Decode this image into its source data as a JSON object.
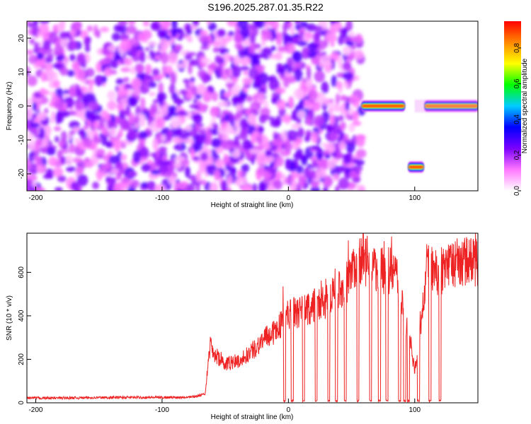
{
  "figure_title": "S196.2025.287.01.35.R22",
  "colors": {
    "line": "#ee2222",
    "colormap": [
      "#ffffff",
      "#ff77ff",
      "#7b00ff",
      "#0000ff",
      "#00ccff",
      "#00ff00",
      "#ffff00",
      "#ff8800",
      "#ff0000"
    ]
  },
  "chart_data": [
    {
      "type": "heatmap",
      "title": "",
      "xlabel": "Height of straight line (km)",
      "ylabel": "Frequency (Hz)",
      "xlim": [
        -207,
        150
      ],
      "ylim": [
        -25,
        25
      ],
      "xticks": [
        -200,
        -100,
        0,
        100
      ],
      "yticks": [
        20,
        10,
        0,
        -10,
        -20
      ],
      "colorbar": {
        "label": "Normalized spectral amplitude",
        "range": [
          0,
          0.95
        ],
        "ticks": [
          0.0,
          0.2,
          0.4,
          0.6,
          0.8
        ],
        "scheme": "rainbow"
      },
      "regions": [
        {
          "name": "noise",
          "x": [
            -207,
            58
          ],
          "y": [
            -25,
            25
          ],
          "amplitude": [
            0.05,
            0.3
          ]
        },
        {
          "name": "carrier",
          "x": [
            58,
            92
          ],
          "y": 0,
          "amplitude": 0.95
        },
        {
          "name": "carrier",
          "x": [
            108,
            150
          ],
          "y": 0,
          "amplitude": 0.9
        },
        {
          "name": "offset-signal",
          "x": [
            95,
            107
          ],
          "y": -18,
          "amplitude": 0.95
        },
        {
          "name": "faint",
          "x": [
            100,
            150
          ],
          "y": 0,
          "amplitude": 0.15
        }
      ]
    },
    {
      "type": "line",
      "title": "",
      "xlabel": "Height of straight line (km)",
      "ylabel": "SNR (10 * v/v)",
      "xlim": [
        -207,
        150
      ],
      "ylim": [
        0,
        780
      ],
      "xticks": [
        -200,
        -100,
        0,
        100
      ],
      "yticks": [
        0,
        200,
        400,
        600
      ],
      "series": [
        {
          "x": [
            -207,
            -180,
            -150,
            -120,
            -90,
            -75,
            -66,
            -62,
            -58,
            -50,
            -40,
            -30,
            -20,
            -10,
            0,
            10,
            20,
            30,
            40,
            48,
            55,
            62,
            70,
            78,
            85,
            90,
            95,
            100,
            105,
            110,
            115,
            120,
            125,
            130,
            140,
            150
          ],
          "values": [
            22,
            22,
            24,
            25,
            25,
            28,
            40,
            260,
            220,
            180,
            190,
            230,
            290,
            330,
            410,
            420,
            440,
            460,
            520,
            560,
            660,
            640,
            600,
            610,
            600,
            470,
            300,
            150,
            350,
            650,
            600,
            600,
            620,
            640,
            650,
            650
          ]
        }
      ],
      "dropouts": [
        -3,
        3,
        12,
        22,
        32,
        38,
        45,
        55,
        65,
        72,
        78,
        88,
        92,
        95,
        103,
        112,
        120
      ]
    }
  ]
}
